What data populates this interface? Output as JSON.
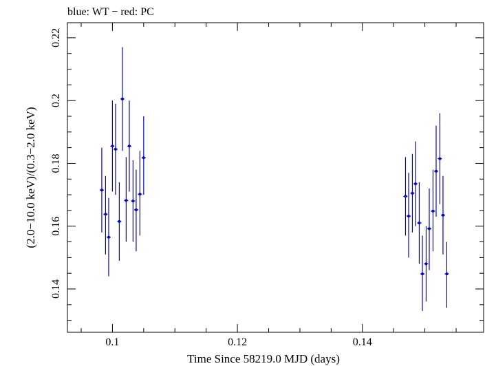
{
  "chart_data": {
    "type": "scatter",
    "title": "blue: WT − red: PC",
    "xlabel": "Time Since 58219.0 MJD (days)",
    "ylabel": "(2.0−10.0 keV)/(0.3−2.0 keV)",
    "xlim": [
      0.0928,
      0.1594
    ],
    "ylim": [
      0.1262,
      0.2248
    ],
    "x_ticks": [
      0.1,
      0.12,
      0.14
    ],
    "x_tick_labels": [
      "0.1",
      "0.12",
      "0.14"
    ],
    "y_ticks": [
      0.14,
      0.16,
      0.18,
      0.2,
      0.22
    ],
    "y_tick_labels": [
      "0.14",
      "0.16",
      "0.18",
      "0.2",
      "0.22"
    ],
    "grid": false,
    "colors": {
      "series": "#0000cc",
      "axis": "#000000"
    },
    "series": [
      {
        "points": [
          {
            "x": 0.0983,
            "y": 0.1715,
            "ylo": 0.158,
            "yhi": 0.185
          },
          {
            "x": 0.0989,
            "y": 0.1638,
            "ylo": 0.151,
            "yhi": 0.176
          },
          {
            "x": 0.0994,
            "y": 0.1565,
            "ylo": 0.144,
            "yhi": 0.169
          },
          {
            "x": 0.1,
            "y": 0.1855,
            "ylo": 0.171,
            "yhi": 0.2
          },
          {
            "x": 0.1005,
            "y": 0.1845,
            "ylo": 0.17,
            "yhi": 0.199
          },
          {
            "x": 0.1011,
            "y": 0.1615,
            "ylo": 0.149,
            "yhi": 0.174
          },
          {
            "x": 0.1016,
            "y": 0.2005,
            "ylo": 0.184,
            "yhi": 0.217
          },
          {
            "x": 0.1022,
            "y": 0.1682,
            "ylo": 0.155,
            "yhi": 0.182
          },
          {
            "x": 0.1027,
            "y": 0.1855,
            "ylo": 0.171,
            "yhi": 0.2
          },
          {
            "x": 0.1033,
            "y": 0.168,
            "ylo": 0.155,
            "yhi": 0.181
          },
          {
            "x": 0.1038,
            "y": 0.1652,
            "ylo": 0.152,
            "yhi": 0.178
          },
          {
            "x": 0.1044,
            "y": 0.1702,
            "ylo": 0.157,
            "yhi": 0.184
          },
          {
            "x": 0.105,
            "y": 0.1818,
            "ylo": 0.17,
            "yhi": 0.195
          },
          {
            "x": 0.1469,
            "y": 0.1695,
            "ylo": 0.157,
            "yhi": 0.182
          },
          {
            "x": 0.1474,
            "y": 0.1632,
            "ylo": 0.15,
            "yhi": 0.177
          },
          {
            "x": 0.148,
            "y": 0.1705,
            "ylo": 0.158,
            "yhi": 0.183
          },
          {
            "x": 0.1485,
            "y": 0.1735,
            "ylo": 0.16,
            "yhi": 0.187
          },
          {
            "x": 0.1491,
            "y": 0.161,
            "ylo": 0.148,
            "yhi": 0.174
          },
          {
            "x": 0.1496,
            "y": 0.1448,
            "ylo": 0.133,
            "yhi": 0.157
          },
          {
            "x": 0.1502,
            "y": 0.148,
            "ylo": 0.136,
            "yhi": 0.16
          },
          {
            "x": 0.1507,
            "y": 0.1592,
            "ylo": 0.146,
            "yhi": 0.172
          },
          {
            "x": 0.1513,
            "y": 0.1648,
            "ylo": 0.152,
            "yhi": 0.178
          },
          {
            "x": 0.1518,
            "y": 0.1775,
            "ylo": 0.163,
            "yhi": 0.192
          },
          {
            "x": 0.1524,
            "y": 0.1815,
            "ylo": 0.167,
            "yhi": 0.196
          },
          {
            "x": 0.1529,
            "y": 0.1635,
            "ylo": 0.151,
            "yhi": 0.176
          },
          {
            "x": 0.1535,
            "y": 0.1448,
            "ylo": 0.134,
            "yhi": 0.155
          }
        ]
      }
    ]
  }
}
